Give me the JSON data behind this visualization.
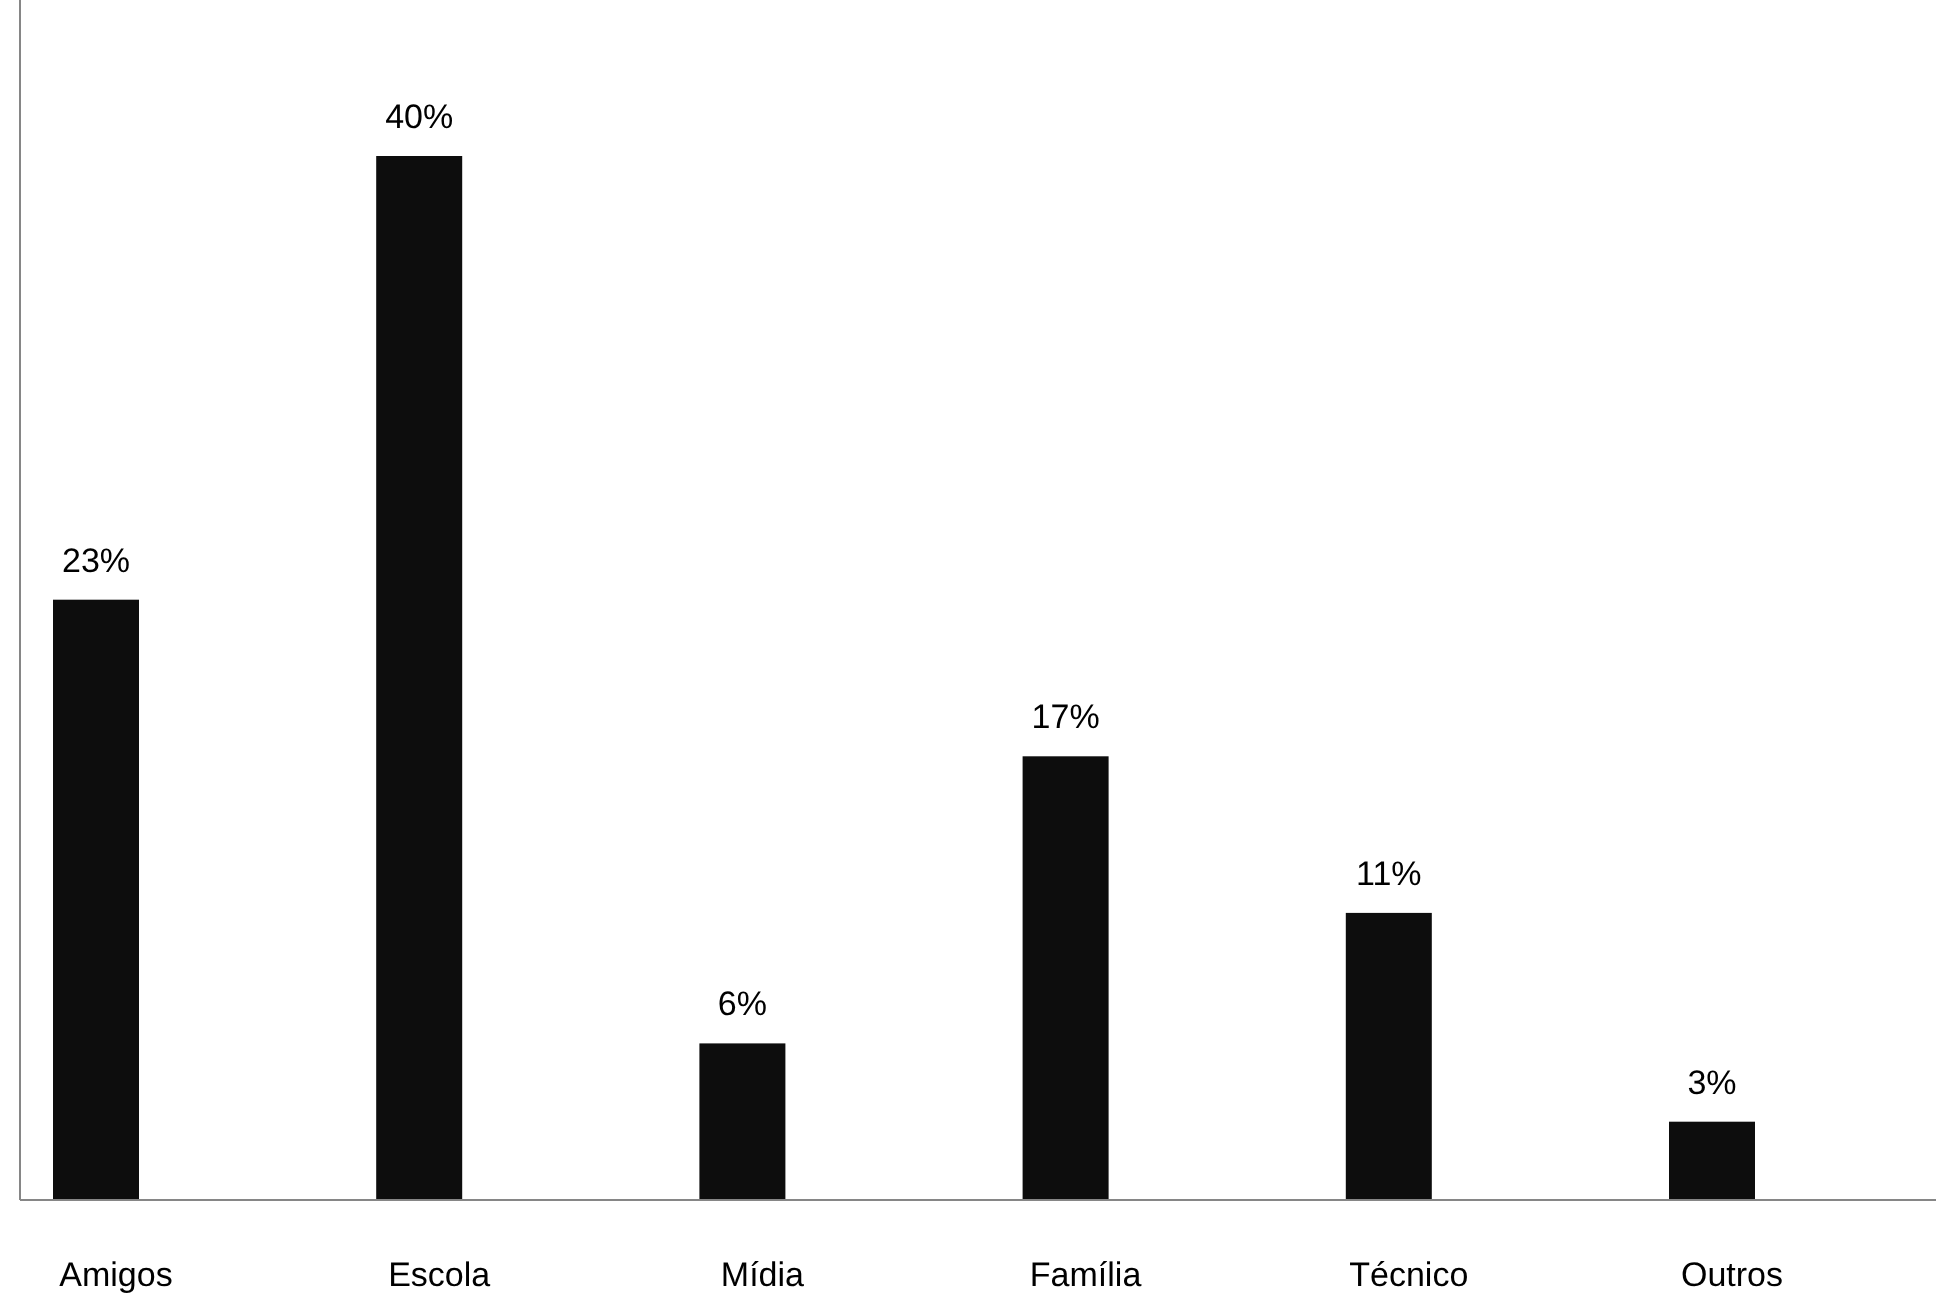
{
  "chart_data": {
    "type": "bar",
    "categories": [
      "Amigos",
      "Escola",
      "Mídia",
      "Família",
      "Técnico",
      "Outros"
    ],
    "values": [
      23,
      40,
      6,
      17,
      11,
      3
    ],
    "value_labels": [
      "23%",
      "40%",
      "6%",
      "17%",
      "11%",
      "3%"
    ],
    "color": "#0d0d0d"
  }
}
